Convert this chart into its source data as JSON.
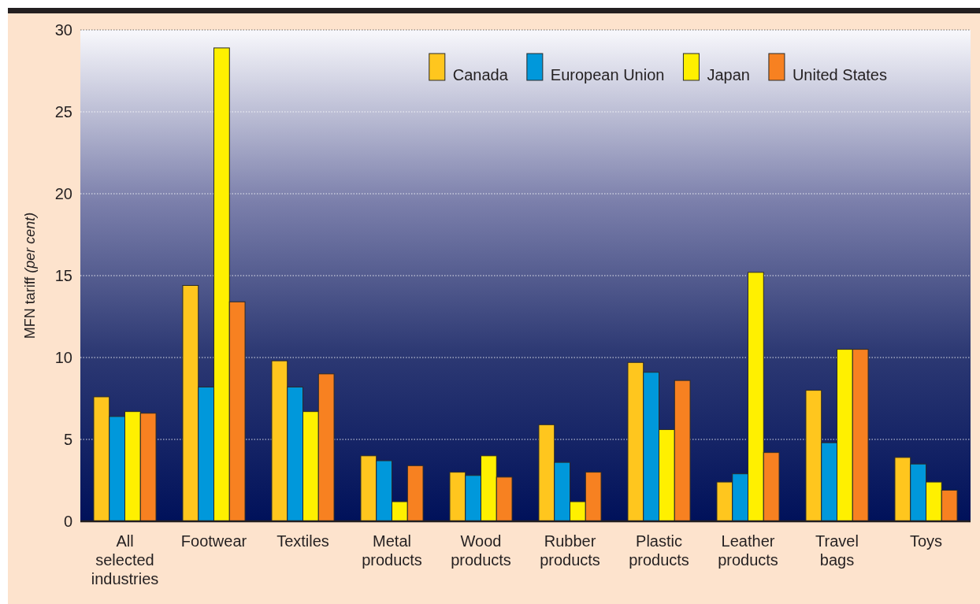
{
  "chart_data": {
    "type": "bar",
    "ylabel": "MFN tariff (per cent)",
    "categories": [
      "All selected industries",
      "Footwear",
      "Textiles",
      "Metal products",
      "Wood products",
      "Rubber products",
      "Plastic products",
      "Leather products",
      "Travel bags",
      "Toys"
    ],
    "series": [
      {
        "name": "Canada",
        "color": "#ffc61e",
        "values": [
          7.6,
          14.4,
          9.8,
          4.0,
          3.0,
          5.9,
          9.7,
          2.4,
          8.0,
          3.9
        ]
      },
      {
        "name": "European Union",
        "color": "#0098db",
        "values": [
          6.4,
          8.2,
          8.2,
          3.7,
          2.8,
          3.6,
          9.1,
          2.9,
          4.8,
          3.5
        ]
      },
      {
        "name": "Japan",
        "color": "#fff000",
        "values": [
          6.7,
          28.9,
          6.7,
          1.2,
          4.0,
          1.2,
          5.6,
          15.2,
          10.5,
          2.4
        ]
      },
      {
        "name": "United States",
        "color": "#f78121",
        "values": [
          6.6,
          13.4,
          9.0,
          3.4,
          2.7,
          3.0,
          8.6,
          4.2,
          10.5,
          1.9
        ]
      }
    ],
    "ylim": [
      0,
      30
    ],
    "yticks": [
      0,
      5,
      10,
      15,
      20,
      25,
      30
    ],
    "grid": "y",
    "legend": "top right"
  }
}
